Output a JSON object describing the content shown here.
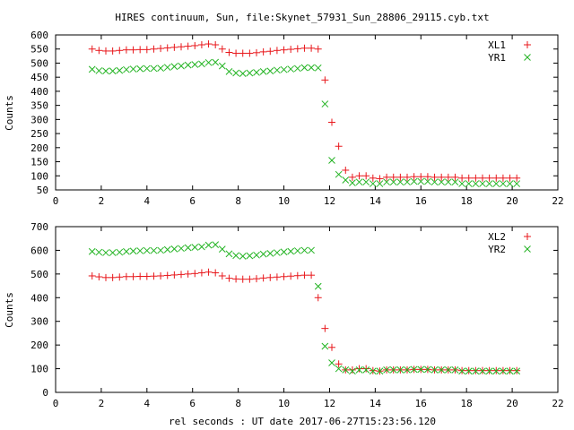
{
  "chart_data": [
    {
      "type": "scatter",
      "title": "HIRES continuum, Sun, file:Skynet_57931_Sun_28806_29115.cyb.txt",
      "xlabel": "",
      "ylabel": "Counts",
      "xlim": [
        0,
        22
      ],
      "ylim": [
        50,
        600
      ],
      "xticks": [
        0,
        2,
        4,
        6,
        8,
        10,
        12,
        14,
        16,
        18,
        20,
        22
      ],
      "yticks": [
        50,
        100,
        150,
        200,
        250,
        300,
        350,
        400,
        450,
        500,
        550,
        600
      ],
      "grid": false,
      "legend": "top-right",
      "x": [
        1.6,
        1.9,
        2.2,
        2.5,
        2.8,
        3.1,
        3.4,
        3.7,
        4.0,
        4.3,
        4.6,
        4.9,
        5.2,
        5.5,
        5.8,
        6.1,
        6.4,
        6.7,
        7.0,
        7.3,
        7.6,
        7.9,
        8.2,
        8.5,
        8.8,
        9.1,
        9.4,
        9.7,
        10.0,
        10.3,
        10.6,
        10.9,
        11.2,
        11.5,
        11.8,
        12.1,
        12.4,
        12.7,
        13.0,
        13.3,
        13.6,
        13.9,
        14.2,
        14.5,
        14.8,
        15.1,
        15.4,
        15.7,
        16.0,
        16.3,
        16.6,
        16.9,
        17.2,
        17.5,
        17.8,
        18.1,
        18.4,
        18.7,
        19.0,
        19.3,
        19.6,
        19.9,
        20.2
      ],
      "series": [
        {
          "name": "XL1",
          "color": "#e8171b",
          "marker": "plus",
          "values": [
            550,
            545,
            543,
            543,
            545,
            547,
            547,
            548,
            548,
            550,
            552,
            554,
            556,
            558,
            560,
            562,
            565,
            568,
            565,
            550,
            538,
            535,
            535,
            535,
            537,
            540,
            542,
            545,
            547,
            549,
            551,
            553,
            553,
            550,
            440,
            290,
            205,
            120,
            95,
            100,
            100,
            92,
            90,
            95,
            95,
            95,
            95,
            97,
            97,
            97,
            95,
            95,
            95,
            95,
            92,
            92,
            92,
            92,
            92,
            92,
            92,
            92,
            92
          ]
        },
        {
          "name": "YR1",
          "color": "#22b322",
          "marker": "x",
          "values": [
            478,
            473,
            472,
            472,
            474,
            477,
            479,
            480,
            481,
            481,
            482,
            485,
            488,
            490,
            493,
            495,
            497,
            502,
            503,
            490,
            470,
            465,
            463,
            465,
            467,
            470,
            472,
            475,
            477,
            479,
            481,
            484,
            484,
            483,
            355,
            155,
            105,
            85,
            75,
            78,
            78,
            72,
            72,
            78,
            78,
            78,
            78,
            80,
            80,
            80,
            78,
            78,
            78,
            78,
            72,
            72,
            72,
            72,
            72,
            72,
            72,
            72,
            72
          ]
        }
      ]
    },
    {
      "type": "scatter",
      "title": "",
      "xlabel": "rel seconds : UT date 2017-06-27T15:23:56.120",
      "ylabel": "Counts",
      "xlim": [
        0,
        22
      ],
      "ylim": [
        0,
        700
      ],
      "xticks": [
        0,
        2,
        4,
        6,
        8,
        10,
        12,
        14,
        16,
        18,
        20,
        22
      ],
      "yticks": [
        0,
        100,
        200,
        300,
        400,
        500,
        600,
        700
      ],
      "grid": false,
      "legend": "top-right",
      "x": [
        1.6,
        1.9,
        2.2,
        2.5,
        2.8,
        3.1,
        3.4,
        3.7,
        4.0,
        4.3,
        4.6,
        4.9,
        5.2,
        5.5,
        5.8,
        6.1,
        6.4,
        6.7,
        7.0,
        7.3,
        7.6,
        7.9,
        8.2,
        8.5,
        8.8,
        9.1,
        9.4,
        9.7,
        10.0,
        10.3,
        10.6,
        10.9,
        11.2,
        11.5,
        11.8,
        12.1,
        12.4,
        12.7,
        13.0,
        13.3,
        13.6,
        13.9,
        14.2,
        14.5,
        14.8,
        15.1,
        15.4,
        15.7,
        16.0,
        16.3,
        16.6,
        16.9,
        17.2,
        17.5,
        17.8,
        18.1,
        18.4,
        18.7,
        19.0,
        19.3,
        19.6,
        19.9,
        20.2
      ],
      "series": [
        {
          "name": "XL2",
          "color": "#e8171b",
          "marker": "plus",
          "values": [
            492,
            488,
            485,
            485,
            487,
            489,
            489,
            490,
            490,
            491,
            492,
            494,
            496,
            498,
            500,
            502,
            505,
            508,
            505,
            492,
            482,
            479,
            478,
            478,
            480,
            483,
            485,
            487,
            489,
            491,
            493,
            495,
            495,
            400,
            270,
            190,
            120,
            95,
            95,
            100,
            100,
            92,
            90,
            95,
            95,
            95,
            95,
            97,
            97,
            97,
            95,
            95,
            95,
            95,
            92,
            92,
            92,
            92,
            92,
            92,
            92,
            92,
            92
          ]
        },
        {
          "name": "YR2",
          "color": "#22b322",
          "marker": "x",
          "values": [
            595,
            592,
            590,
            590,
            592,
            595,
            597,
            598,
            599,
            599,
            600,
            603,
            606,
            608,
            611,
            613,
            615,
            622,
            624,
            605,
            585,
            578,
            575,
            577,
            580,
            584,
            587,
            590,
            593,
            596,
            598,
            600,
            600,
            448,
            195,
            125,
            100,
            95,
            90,
            95,
            95,
            90,
            90,
            95,
            95,
            95,
            95,
            97,
            97,
            97,
            95,
            95,
            95,
            95,
            90,
            90,
            90,
            90,
            90,
            90,
            90,
            90,
            90
          ]
        }
      ]
    }
  ]
}
